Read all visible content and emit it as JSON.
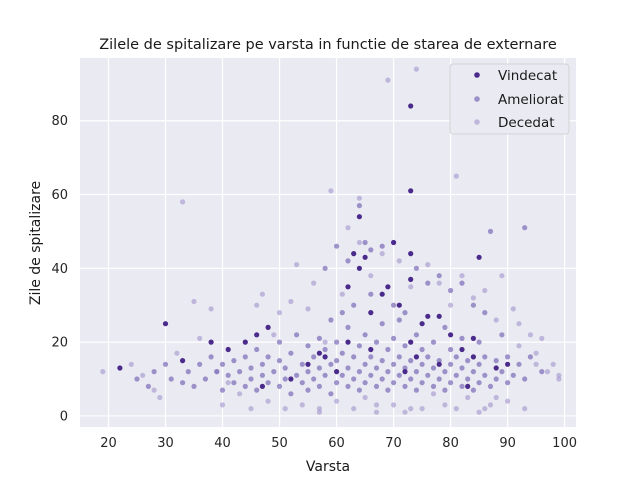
{
  "chart_data": {
    "type": "scatter",
    "title": "Zilele de spitalizare pe varsta in functie de starea de externare",
    "xlabel": "Varsta",
    "ylabel": "Zile de spitalizare",
    "xlim": [
      15,
      102
    ],
    "ylim": [
      -3,
      97
    ],
    "xticks": [
      20,
      30,
      40,
      50,
      60,
      70,
      80,
      90,
      100
    ],
    "yticks": [
      0,
      20,
      40,
      60,
      80
    ],
    "grid": true,
    "legend_position": "top-right",
    "series": [
      {
        "name": "Vindecat",
        "color": "#4a2a8a",
        "opacity": 1.0,
        "points": [
          [
            22,
            13
          ],
          [
            30,
            25
          ],
          [
            33,
            15
          ],
          [
            38,
            20
          ],
          [
            41,
            18
          ],
          [
            44,
            20
          ],
          [
            46,
            22
          ],
          [
            48,
            24
          ],
          [
            52,
            10
          ],
          [
            55,
            14
          ],
          [
            58,
            16
          ],
          [
            60,
            12
          ],
          [
            62,
            35
          ],
          [
            62,
            20
          ],
          [
            63,
            44
          ],
          [
            64,
            54
          ],
          [
            64,
            40
          ],
          [
            65,
            43
          ],
          [
            66,
            18
          ],
          [
            68,
            33
          ],
          [
            69,
            35
          ],
          [
            70,
            47
          ],
          [
            71,
            30
          ],
          [
            72,
            12
          ],
          [
            73,
            84
          ],
          [
            73,
            61
          ],
          [
            73,
            44
          ],
          [
            73,
            37
          ],
          [
            73,
            20
          ],
          [
            74,
            16
          ],
          [
            75,
            25
          ],
          [
            76,
            27
          ],
          [
            78,
            14
          ],
          [
            80,
            22
          ],
          [
            82,
            18
          ],
          [
            83,
            8
          ],
          [
            84,
            21
          ],
          [
            85,
            43
          ],
          [
            88,
            13
          ],
          [
            90,
            14
          ],
          [
            47,
            8
          ],
          [
            57,
            17
          ],
          [
            66,
            28
          ],
          [
            78,
            27
          ],
          [
            84,
            16
          ]
        ]
      },
      {
        "name": "Ameliorat",
        "color": "#7b6ab8",
        "opacity": 0.7,
        "points": [
          [
            25,
            10
          ],
          [
            27,
            8
          ],
          [
            28,
            12
          ],
          [
            30,
            14
          ],
          [
            31,
            10
          ],
          [
            33,
            9
          ],
          [
            34,
            12
          ],
          [
            35,
            8
          ],
          [
            36,
            14
          ],
          [
            37,
            10
          ],
          [
            38,
            16
          ],
          [
            39,
            12
          ],
          [
            40,
            7
          ],
          [
            40,
            14
          ],
          [
            41,
            11
          ],
          [
            42,
            9
          ],
          [
            42,
            15
          ],
          [
            43,
            12
          ],
          [
            44,
            8
          ],
          [
            44,
            16
          ],
          [
            45,
            10
          ],
          [
            45,
            13
          ],
          [
            46,
            7
          ],
          [
            46,
            18
          ],
          [
            47,
            11
          ],
          [
            47,
            14
          ],
          [
            48,
            9
          ],
          [
            48,
            16
          ],
          [
            49,
            12
          ],
          [
            50,
            8
          ],
          [
            50,
            15
          ],
          [
            50,
            20
          ],
          [
            51,
            10
          ],
          [
            51,
            13
          ],
          [
            52,
            6
          ],
          [
            52,
            17
          ],
          [
            53,
            11
          ],
          [
            53,
            22
          ],
          [
            54,
            9
          ],
          [
            54,
            14
          ],
          [
            55,
            7
          ],
          [
            55,
            12
          ],
          [
            55,
            19
          ],
          [
            56,
            10
          ],
          [
            56,
            16
          ],
          [
            57,
            8
          ],
          [
            57,
            13
          ],
          [
            57,
            21
          ],
          [
            58,
            11
          ],
          [
            58,
            18
          ],
          [
            59,
            6
          ],
          [
            59,
            14
          ],
          [
            59,
            26
          ],
          [
            60,
            9
          ],
          [
            60,
            15
          ],
          [
            60,
            20
          ],
          [
            61,
            11
          ],
          [
            61,
            17
          ],
          [
            61,
            28
          ],
          [
            62,
            8
          ],
          [
            62,
            13
          ],
          [
            62,
            24
          ],
          [
            63,
            10
          ],
          [
            63,
            16
          ],
          [
            63,
            30
          ],
          [
            64,
            7
          ],
          [
            64,
            12
          ],
          [
            64,
            19
          ],
          [
            65,
            9
          ],
          [
            65,
            14
          ],
          [
            65,
            22
          ],
          [
            66,
            11
          ],
          [
            66,
            16
          ],
          [
            66,
            33
          ],
          [
            67,
            8
          ],
          [
            67,
            13
          ],
          [
            67,
            20
          ],
          [
            68,
            10
          ],
          [
            68,
            15
          ],
          [
            68,
            25
          ],
          [
            69,
            7
          ],
          [
            69,
            12
          ],
          [
            69,
            18
          ],
          [
            70,
            9
          ],
          [
            70,
            14
          ],
          [
            70,
            21
          ],
          [
            71,
            11
          ],
          [
            71,
            16
          ],
          [
            71,
            26
          ],
          [
            72,
            8
          ],
          [
            72,
            13
          ],
          [
            72,
            19
          ],
          [
            73,
            10
          ],
          [
            73,
            15
          ],
          [
            74,
            7
          ],
          [
            74,
            12
          ],
          [
            74,
            22
          ],
          [
            75,
            9
          ],
          [
            75,
            14
          ],
          [
            75,
            18
          ],
          [
            76,
            11
          ],
          [
            76,
            16
          ],
          [
            77,
            8
          ],
          [
            77,
            13
          ],
          [
            77,
            20
          ],
          [
            78,
            10
          ],
          [
            78,
            15
          ],
          [
            79,
            7
          ],
          [
            79,
            12
          ],
          [
            79,
            24
          ],
          [
            80,
            9
          ],
          [
            80,
            14
          ],
          [
            80,
            18
          ],
          [
            81,
            11
          ],
          [
            81,
            16
          ],
          [
            82,
            8
          ],
          [
            82,
            13
          ],
          [
            82,
            21
          ],
          [
            83,
            10
          ],
          [
            83,
            15
          ],
          [
            84,
            7
          ],
          [
            84,
            12
          ],
          [
            85,
            9
          ],
          [
            85,
            14
          ],
          [
            85,
            20
          ],
          [
            86,
            11
          ],
          [
            86,
            16
          ],
          [
            87,
            8
          ],
          [
            87,
            50
          ],
          [
            88,
            10
          ],
          [
            88,
            15
          ],
          [
            89,
            12
          ],
          [
            89,
            22
          ],
          [
            90,
            9
          ],
          [
            90,
            16
          ],
          [
            91,
            11
          ],
          [
            92,
            14
          ],
          [
            93,
            51
          ],
          [
            93,
            10
          ],
          [
            94,
            16
          ],
          [
            96,
            12
          ],
          [
            58,
            40
          ],
          [
            60,
            46
          ],
          [
            62,
            42
          ],
          [
            64,
            57
          ],
          [
            65,
            47
          ],
          [
            66,
            45
          ],
          [
            68,
            46
          ],
          [
            70,
            30
          ],
          [
            72,
            28
          ],
          [
            74,
            40
          ],
          [
            76,
            36
          ],
          [
            78,
            38
          ],
          [
            80,
            34
          ],
          [
            82,
            36
          ],
          [
            84,
            30
          ],
          [
            86,
            28
          ]
        ]
      },
      {
        "name": "Decedat",
        "color": "#a89ad0",
        "opacity": 0.65,
        "points": [
          [
            19,
            12
          ],
          [
            24,
            14
          ],
          [
            26,
            11
          ],
          [
            28,
            7
          ],
          [
            29,
            5
          ],
          [
            32,
            17
          ],
          [
            33,
            58
          ],
          [
            35,
            31
          ],
          [
            36,
            21
          ],
          [
            38,
            29
          ],
          [
            39,
            12
          ],
          [
            40,
            3
          ],
          [
            41,
            9
          ],
          [
            43,
            6
          ],
          [
            45,
            2
          ],
          [
            46,
            30
          ],
          [
            47,
            33
          ],
          [
            48,
            4
          ],
          [
            49,
            22
          ],
          [
            50,
            28
          ],
          [
            51,
            2
          ],
          [
            52,
            31
          ],
          [
            53,
            41
          ],
          [
            54,
            3
          ],
          [
            55,
            29
          ],
          [
            56,
            36
          ],
          [
            57,
            1
          ],
          [
            58,
            20
          ],
          [
            59,
            61
          ],
          [
            60,
            4
          ],
          [
            61,
            33
          ],
          [
            62,
            51
          ],
          [
            63,
            2
          ],
          [
            64,
            59
          ],
          [
            64,
            47
          ],
          [
            65,
            5
          ],
          [
            66,
            38
          ],
          [
            67,
            1
          ],
          [
            68,
            44
          ],
          [
            69,
            91
          ],
          [
            70,
            3
          ],
          [
            71,
            42
          ],
          [
            72,
            1
          ],
          [
            73,
            35
          ],
          [
            74,
            94
          ],
          [
            75,
            2
          ],
          [
            76,
            41
          ],
          [
            77,
            6
          ],
          [
            78,
            36
          ],
          [
            79,
            3
          ],
          [
            80,
            30
          ],
          [
            81,
            65
          ],
          [
            81,
            2
          ],
          [
            82,
            38
          ],
          [
            83,
            5
          ],
          [
            84,
            32
          ],
          [
            85,
            1
          ],
          [
            86,
            34
          ],
          [
            87,
            3
          ],
          [
            88,
            26
          ],
          [
            89,
            38
          ],
          [
            90,
            4
          ],
          [
            91,
            29
          ],
          [
            92,
            19
          ],
          [
            93,
            2
          ],
          [
            94,
            22
          ],
          [
            95,
            14
          ],
          [
            96,
            21
          ],
          [
            97,
            12
          ],
          [
            98,
            14
          ],
          [
            99,
            10
          ],
          [
            99,
            11
          ],
          [
            92,
            25
          ],
          [
            95,
            17
          ],
          [
            88,
            5
          ],
          [
            86,
            2
          ],
          [
            57,
            2
          ],
          [
            67,
            3
          ],
          [
            73,
            2
          ]
        ]
      }
    ]
  }
}
